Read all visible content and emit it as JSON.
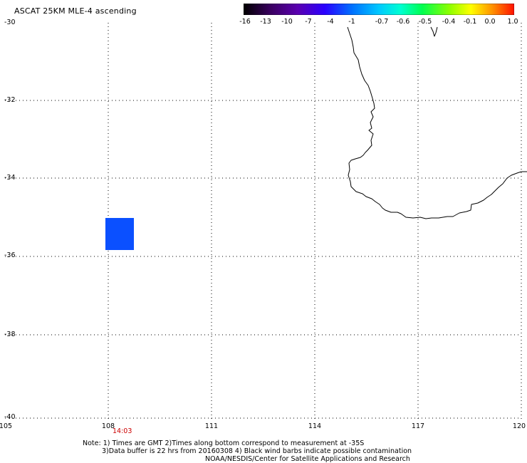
{
  "title": "ASCAT 25KM MLE-4 ascending",
  "colorbar": {
    "labels": [
      "-16",
      "-13",
      "-10",
      "-7",
      "-4",
      "-1",
      "-0.7",
      "-0.6",
      "-0.5",
      "-0.4",
      "-0.1",
      "0.0",
      "1.0"
    ],
    "colors": [
      "#000000",
      "#5a0090",
      "#2a00ff",
      "#0050ff",
      "#0096ff",
      "#00e0ff",
      "#00ffd2",
      "#00ff60",
      "#50ff00",
      "#c8ff00",
      "#ffe000",
      "#ff8000",
      "#ff2000"
    ]
  },
  "axes": {
    "lat_labels": [
      "-30",
      "-32",
      "-34",
      "-36",
      "-38",
      "-40"
    ],
    "lon_labels": [
      "105",
      "108",
      "111",
      "114",
      "117",
      "120"
    ]
  },
  "time_label": "14:03",
  "data_cell": {
    "lon_min": 107.85,
    "lon_max": 108.65,
    "lat_max": -35.05,
    "lat_min": -35.85,
    "color": "#0b50ff"
  },
  "notes": [
    "Note: 1) Times are GMT 2)Times along bottom correspond to measurement at -35S",
    "3)Data buffer is 22 hrs from 20160308 4) Black wind barbs indicate possible contamination",
    "NOAA/NESDIS/Center for Satellite Applications and Research"
  ]
}
